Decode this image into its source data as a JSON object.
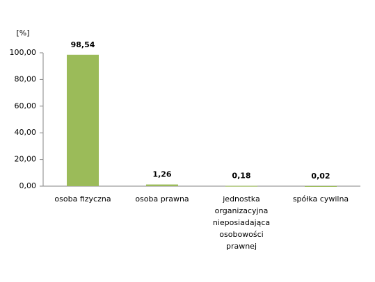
{
  "chart_data": {
    "type": "bar",
    "y_label": "[%]",
    "categories": [
      "osoba fizyczna",
      "osoba prawna",
      "jednostka organizacyjna nieposiadająca osobowości prawnej",
      "spółka cywilna"
    ],
    "values": [
      98.54,
      1.26,
      0.18,
      0.02
    ],
    "value_labels": [
      "98,54",
      "1,26",
      "0,18",
      "0,02"
    ],
    "color": "#9bbb59",
    "ylim": [
      0,
      100
    ],
    "yticks": [
      {
        "value": 0,
        "label": "0,00"
      },
      {
        "value": 20,
        "label": "20,00"
      },
      {
        "value": 40,
        "label": "40,00"
      },
      {
        "value": 60,
        "label": "60,00"
      },
      {
        "value": 80,
        "label": "80,00"
      },
      {
        "value": 100,
        "label": "100,00"
      }
    ],
    "grid": false
  }
}
